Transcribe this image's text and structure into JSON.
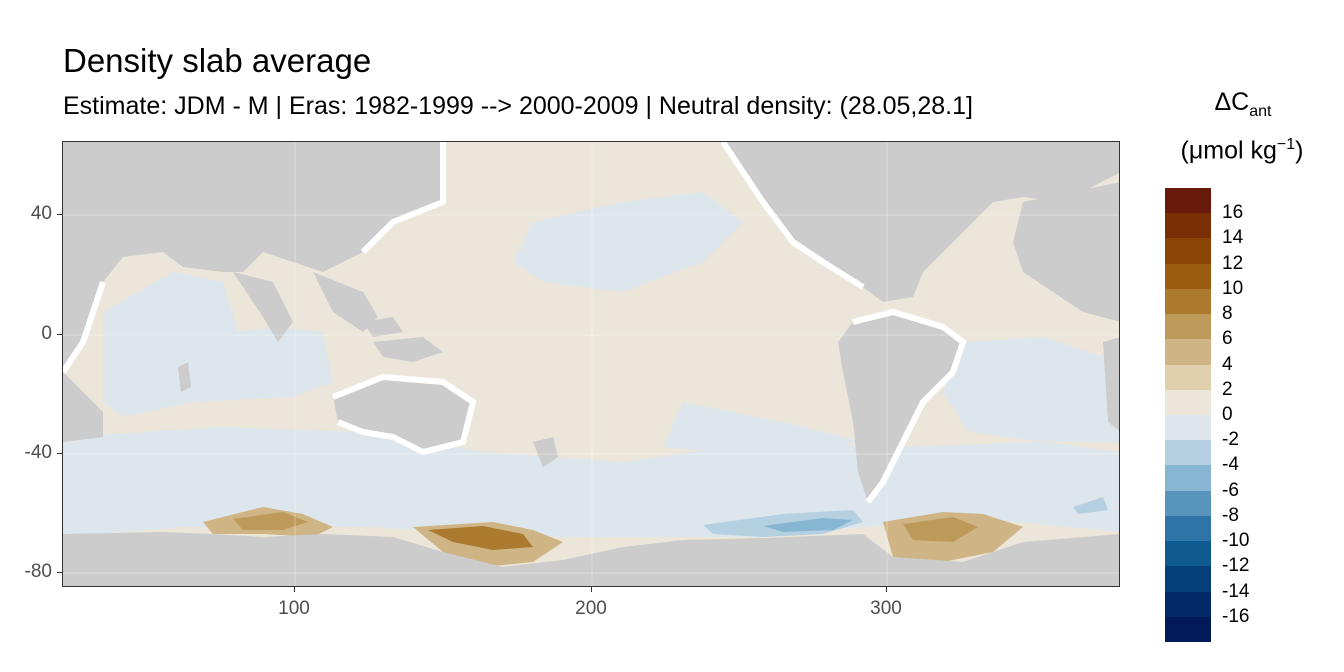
{
  "title": "Density slab average",
  "subtitle": "Estimate: JDM - M | Eras: 1982-1999 --> 2000-2009 | Neutral density: (28.05,28.1]",
  "legend": {
    "title_main": "ΔC",
    "title_sub": "ant",
    "unit_open": "(μmol kg",
    "unit_sup": "−1",
    "unit_close": ")",
    "labels": [
      "16",
      "14",
      "12",
      "10",
      "8",
      "6",
      "4",
      "2",
      "0",
      "-2",
      "-4",
      "-6",
      "-8",
      "-10",
      "-12",
      "-14",
      "-16"
    ],
    "colors": [
      "#67190a",
      "#7a2f05",
      "#8a4506",
      "#9a5c10",
      "#ac7a2e",
      "#bd9a5a",
      "#cfb585",
      "#e1d0ae",
      "#ece6da",
      "#dde6ec",
      "#b5d0e1",
      "#87b6d2",
      "#5994bd",
      "#2e74a6",
      "#0f5a8f",
      "#043f7a",
      "#022a66",
      "#021a57"
    ]
  },
  "map": {
    "land_color": "#cccccc",
    "ocean_neutral_color": "#ece6da",
    "ocean_negative_color": "#dde6ec"
  },
  "chart_data": {
    "type": "heatmap",
    "title": "Density slab average",
    "subtitle": "Estimate: JDM - M | Eras: 1982-1999 --> 2000-2009 | Neutral density: (28.05,28.1]",
    "xlabel": "",
    "ylabel": "",
    "x_ticks": [
      100,
      200,
      300
    ],
    "y_ticks": [
      40,
      0,
      -40,
      -80
    ],
    "xlim": [
      20,
      380
    ],
    "ylim": [
      -85,
      65
    ],
    "colorbar_label": "ΔC_ant (μmol kg−1)",
    "colorbar_breaks": [
      16,
      14,
      12,
      10,
      8,
      6,
      4,
      2,
      0,
      -2,
      -4,
      -6,
      -8,
      -10,
      -12,
      -14,
      -16
    ]
  }
}
